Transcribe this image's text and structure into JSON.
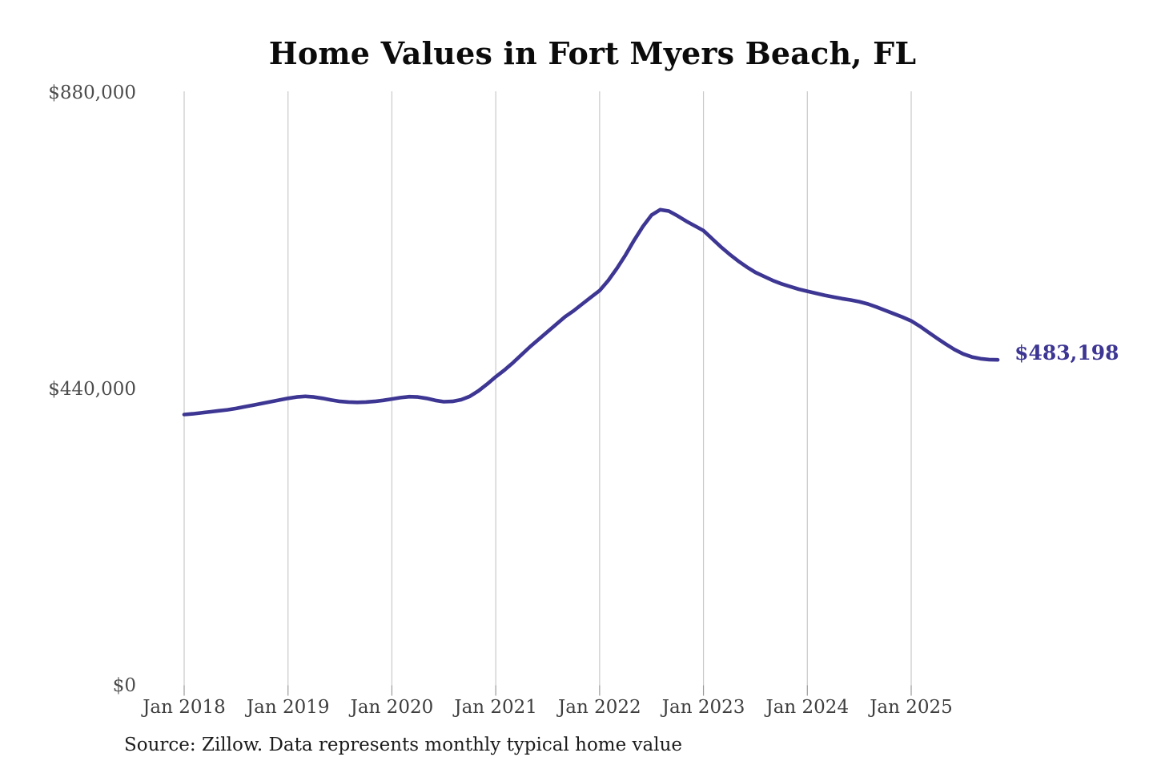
{
  "chart": {
    "title": "Home Values in Fort Myers Beach, FL",
    "end_label": "$483,198",
    "source_note": "Source: Zillow. Data represents monthly typical home value",
    "y_ticks": [
      {
        "label": "$880,000",
        "value": 880000
      },
      {
        "label": "$440,000",
        "value": 440000
      },
      {
        "label": "$0",
        "value": 0
      }
    ],
    "x_ticks": [
      {
        "label": "Jan 2018",
        "month_index": 0
      },
      {
        "label": "Jan 2019",
        "month_index": 12
      },
      {
        "label": "Jan 2020",
        "month_index": 24
      },
      {
        "label": "Jan 2021",
        "month_index": 36
      },
      {
        "label": "Jan 2022",
        "month_index": 48
      },
      {
        "label": "Jan 2023",
        "month_index": 60
      },
      {
        "label": "Jan 2024",
        "month_index": 72
      },
      {
        "label": "Jan 2025",
        "month_index": 84
      }
    ],
    "colors": {
      "line": "#3d3693",
      "end_label_text": "#3d3693",
      "grid": "#c9c9c9",
      "tick_mark": "#9a9a9a",
      "y_axis_text": "#4c4c4c",
      "x_axis_text": "#3e3e3e",
      "title_text": "#0b0b0b",
      "source_text": "#1c1c1c"
    }
  },
  "chart_data": {
    "type": "line",
    "title": "Home Values in Fort Myers Beach, FL",
    "xlabel": "",
    "ylabel": "",
    "ylim": [
      0,
      880000
    ],
    "y_tick_values": [
      0,
      440000,
      880000
    ],
    "y_tick_labels": [
      "$0",
      "$440,000",
      "$880,000"
    ],
    "x_tick_labels": [
      "Jan 2018",
      "Jan 2019",
      "Jan 2020",
      "Jan 2021",
      "Jan 2022",
      "Jan 2023",
      "Jan 2024",
      "Jan 2025"
    ],
    "grid": "vertical-only",
    "legend": "none",
    "frequency": "monthly",
    "start_month": "2018-01",
    "end_month": "2025-11",
    "series": [
      {
        "name": "Typical home value",
        "values": [
          402000,
          403000,
          404500,
          406000,
          407500,
          409000,
          411000,
          413500,
          416000,
          418500,
          421000,
          423500,
          426000,
          428000,
          429000,
          428000,
          426000,
          423500,
          421500,
          420500,
          420000,
          420500,
          421500,
          423000,
          425000,
          427000,
          428500,
          428000,
          426000,
          423000,
          421000,
          421500,
          424000,
          429000,
          437000,
          447000,
          458000,
          468000,
          479000,
          491000,
          503000,
          514000,
          525000,
          536000,
          547000,
          556000,
          566000,
          576000,
          586000,
          601000,
          619000,
          639000,
          661000,
          681000,
          698000,
          706000,
          704000,
          697000,
          689000,
          682000,
          675000,
          663000,
          651000,
          640000,
          630000,
          621000,
          613000,
          607000,
          601000,
          596000,
          592000,
          588000,
          585000,
          582000,
          579000,
          576500,
          574000,
          572000,
          569500,
          566000,
          561500,
          556500,
          551500,
          546500,
          541000,
          533000,
          524000,
          515000,
          506500,
          498500,
          492000,
          487500,
          484800,
          483500,
          483198
        ]
      }
    ],
    "end_value": 483198,
    "annotations": [
      {
        "type": "end-value-label",
        "text": "$483,198",
        "value": 483198
      }
    ]
  }
}
